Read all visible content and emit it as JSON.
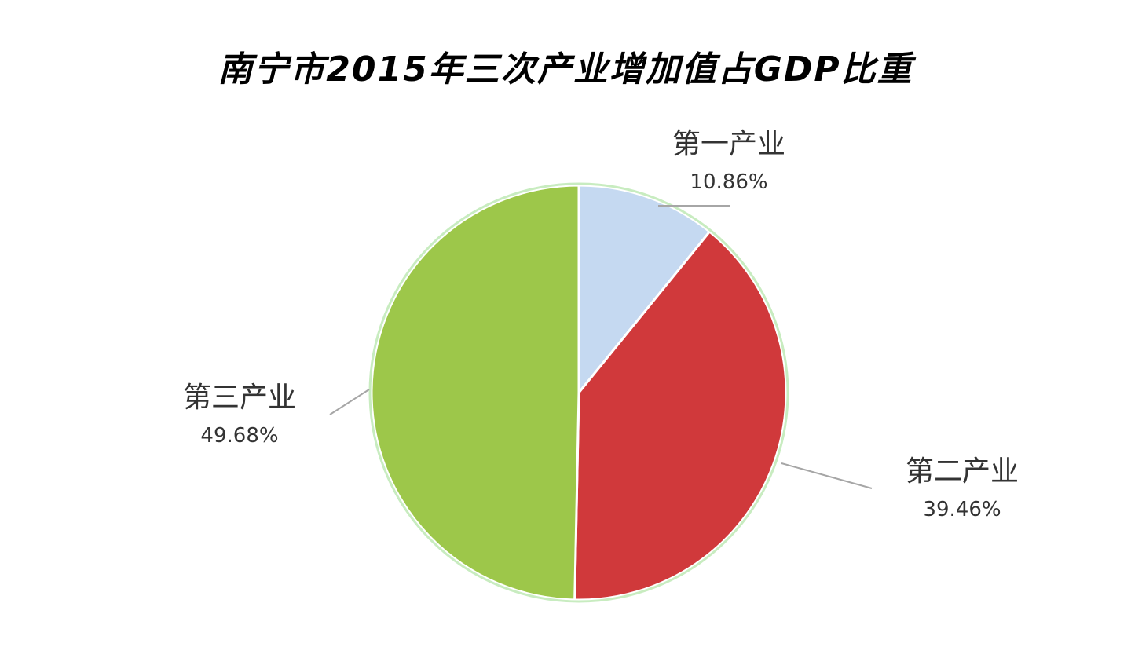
{
  "chart_data": {
    "type": "pie",
    "title": "南宁市2015年三次产业增加值占GDP比重",
    "categories": [
      "第一产业",
      "第二产业",
      "第三产业"
    ],
    "values": [
      10.86,
      39.46,
      49.68
    ],
    "value_labels": [
      "10.86%",
      "39.46%",
      "49.68%"
    ],
    "colors": [
      "#c5d9f1",
      "#d0393b",
      "#9dc74a"
    ],
    "legend": "none",
    "start_angle": "12 o'clock",
    "direction": "clockwise"
  }
}
